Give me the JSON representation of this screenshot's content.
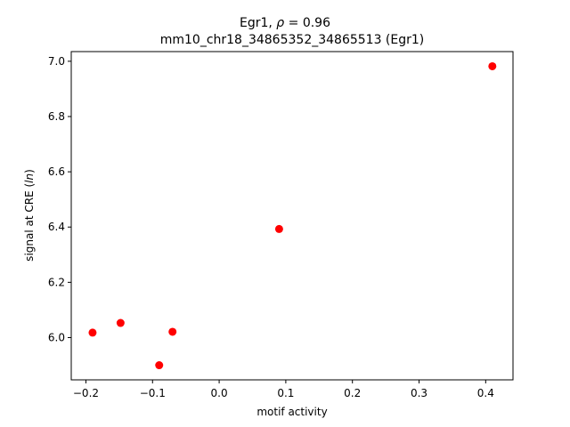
{
  "chart_data": {
    "type": "scatter",
    "title_line1_prefix": "Egr1, ",
    "title_line1_rho": "ρ",
    "title_line1_suffix": " = 0.96",
    "title_line2": "mm10_chr18_34865352_34865513 (Egr1)",
    "xlabel": "motif activity",
    "ylabel_prefix": "signal at CRE (",
    "ylabel_italic": "ln",
    "ylabel_suffix": ")",
    "xlim": [
      -0.222,
      0.441
    ],
    "ylim": [
      5.847,
      7.035
    ],
    "xticks": [
      -0.2,
      -0.1,
      0.0,
      0.1,
      0.2,
      0.3,
      0.4
    ],
    "xtick_labels": [
      "−0.2",
      "−0.1",
      "0.0",
      "0.1",
      "0.2",
      "0.3",
      "0.4"
    ],
    "yticks": [
      6.0,
      6.2,
      6.4,
      6.6,
      6.8,
      7.0
    ],
    "ytick_labels": [
      "6.0",
      "6.2",
      "6.4",
      "6.6",
      "6.8",
      "7.0"
    ],
    "grid": false,
    "marker_color": "#ff0000",
    "points": [
      {
        "x": -0.19,
        "y": 6.018
      },
      {
        "x": -0.148,
        "y": 6.053
      },
      {
        "x": -0.09,
        "y": 5.9
      },
      {
        "x": -0.07,
        "y": 6.021
      },
      {
        "x": 0.09,
        "y": 6.393
      },
      {
        "x": 0.41,
        "y": 6.982
      }
    ]
  }
}
